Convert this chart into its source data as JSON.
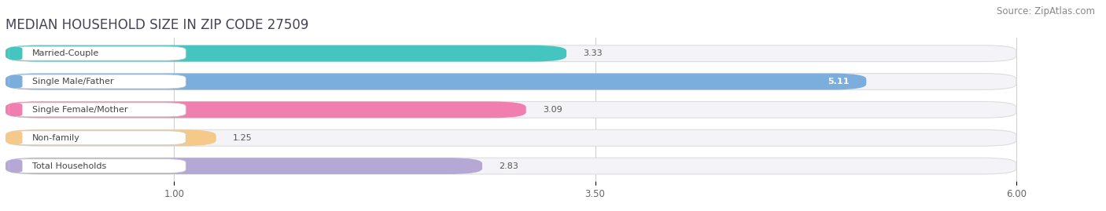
{
  "title": "MEDIAN HOUSEHOLD SIZE IN ZIP CODE 27509",
  "source": "Source: ZipAtlas.com",
  "categories": [
    "Married-Couple",
    "Single Male/Father",
    "Single Female/Mother",
    "Non-family",
    "Total Households"
  ],
  "values": [
    3.33,
    5.11,
    3.09,
    1.25,
    2.83
  ],
  "bar_colors": [
    "#45C5C0",
    "#7BAEDD",
    "#F07EAE",
    "#F5C98A",
    "#B5A8D5"
  ],
  "value_label_inside": [
    false,
    true,
    false,
    false,
    false
  ],
  "background_color": "#ffffff",
  "bar_bg_color": "#f0f0f5",
  "title_fontsize": 12,
  "source_fontsize": 8.5,
  "label_fontsize": 8,
  "value_fontsize": 8,
  "tick_fontsize": 8.5,
  "xlim_max": 6.5,
  "xaxis_max": 6.0,
  "xticks": [
    1.0,
    3.5,
    6.0
  ]
}
